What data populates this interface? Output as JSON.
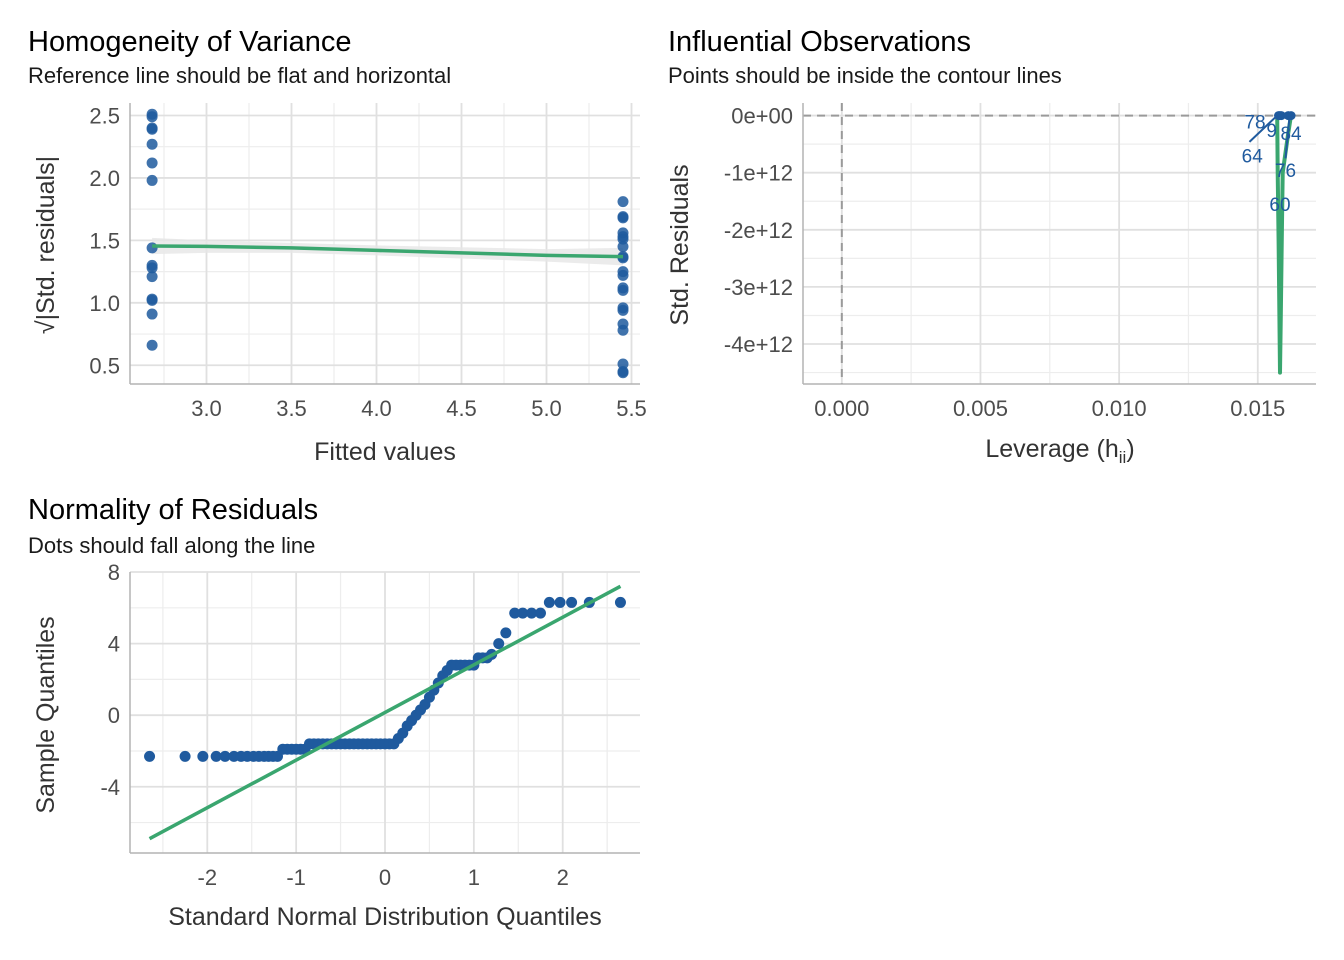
{
  "colors": {
    "points": "#1f5a9e",
    "reference_line": "#3aa66f",
    "band": "#e6e6e6",
    "grid_major": "#e0e0e0",
    "grid_minor": "#ededed",
    "axis": "#b3b3b3",
    "dashed": "#9a9a9a"
  },
  "chart_data": [
    {
      "id": "homogeneity",
      "type": "scatter",
      "title": "Homogeneity of Variance",
      "subtitle": "Reference line should be flat and horizontal",
      "xlabel": "Fitted values",
      "ylabel": "√|Std. residuals|",
      "xlim": [
        2.55,
        5.55
      ],
      "ylim": [
        0.35,
        2.6
      ],
      "x_ticks": [
        3.0,
        3.5,
        4.0,
        4.5,
        5.0,
        5.5
      ],
      "x_tick_labels": [
        "3.0",
        "3.5",
        "4.0",
        "4.5",
        "5.0",
        "5.5"
      ],
      "y_ticks": [
        0.5,
        1.0,
        1.5,
        2.0,
        2.5
      ],
      "y_tick_labels": [
        "0.5",
        "1.0",
        "1.5",
        "2.0",
        "2.5"
      ],
      "points": [
        [
          2.68,
          2.51
        ],
        [
          2.68,
          2.49
        ],
        [
          2.68,
          2.4
        ],
        [
          2.68,
          2.39
        ],
        [
          2.68,
          2.27
        ],
        [
          2.68,
          2.12
        ],
        [
          2.68,
          1.98
        ],
        [
          2.68,
          1.44
        ],
        [
          2.68,
          1.3
        ],
        [
          2.68,
          1.28
        ],
        [
          2.68,
          1.21
        ],
        [
          2.68,
          1.03
        ],
        [
          2.68,
          1.02
        ],
        [
          2.68,
          0.91
        ],
        [
          2.68,
          0.66
        ],
        [
          5.45,
          1.81
        ],
        [
          5.45,
          1.69
        ],
        [
          5.45,
          1.68
        ],
        [
          5.45,
          1.56
        ],
        [
          5.45,
          1.53
        ],
        [
          5.45,
          1.51
        ],
        [
          5.45,
          1.45
        ],
        [
          5.45,
          1.37
        ],
        [
          5.45,
          1.36
        ],
        [
          5.45,
          1.25
        ],
        [
          5.45,
          1.22
        ],
        [
          5.45,
          1.12
        ],
        [
          5.45,
          1.1
        ],
        [
          5.45,
          0.96
        ],
        [
          5.45,
          0.94
        ],
        [
          5.45,
          0.83
        ],
        [
          5.45,
          0.78
        ],
        [
          5.45,
          0.51
        ],
        [
          5.45,
          0.45
        ],
        [
          5.45,
          0.44
        ]
      ],
      "smooth": {
        "x": [
          2.68,
          3.0,
          3.5,
          4.0,
          4.5,
          5.0,
          5.45
        ],
        "y": [
          1.455,
          1.452,
          1.44,
          1.42,
          1.4,
          1.38,
          1.37
        ],
        "band_upper": [
          1.52,
          1.5,
          1.48,
          1.46,
          1.445,
          1.43,
          1.44
        ],
        "band_lower": [
          1.39,
          1.4,
          1.4,
          1.38,
          1.355,
          1.33,
          1.3
        ]
      }
    },
    {
      "id": "influential",
      "type": "scatter",
      "title": "Influential Observations",
      "subtitle": "Points should be inside the contour lines",
      "xlabel": "Leverage (h",
      "xlabel_sub": "ii",
      "xlabel_close": ")",
      "ylabel": "Std. Residuals",
      "xlim": [
        -0.0014,
        0.0171
      ],
      "ylim": [
        -4700000000000.0,
        220000000000.0
      ],
      "x_ticks": [
        0.0,
        0.005,
        0.01,
        0.015
      ],
      "x_tick_labels": [
        "0.000",
        "0.005",
        "0.010",
        "0.015"
      ],
      "y_ticks": [
        0,
        -1000000000000.0,
        -2000000000000.0,
        -3000000000000.0,
        -4000000000000.0
      ],
      "y_tick_labels": [
        "0e+00",
        "-1e+12",
        "-2e+12",
        "-3e+12",
        "-4e+12"
      ],
      "reference_lines": {
        "x": 0.0,
        "y": 0.0
      },
      "points": [
        [
          0.01575,
          0.0
        ],
        [
          0.0158,
          0.0
        ],
        [
          0.01585,
          0.0
        ],
        [
          0.0162,
          0.0
        ],
        [
          0.0161,
          0.0
        ]
      ],
      "labeled_points": [
        {
          "label": "78",
          "x": 0.0149,
          "y": -120000000000.0
        },
        {
          "label": "9",
          "x": 0.0155,
          "y": -270000000000.0
        },
        {
          "label": "84",
          "x": 0.0162,
          "y": -320000000000.0
        },
        {
          "label": "64",
          "x": 0.0148,
          "y": -720000000000.0
        },
        {
          "label": "76",
          "x": 0.016,
          "y": -970000000000.0
        },
        {
          "label": "60",
          "x": 0.0158,
          "y": -1570000000000.0
        }
      ],
      "curve": {
        "x": [
          0.0157,
          0.01572,
          0.01575,
          0.01578,
          0.0158,
          0.01583,
          0.01587,
          0.0159,
          0.0161,
          0.0162
        ],
        "y": [
          0.0,
          -1000000000000.0,
          -2200000000000.0,
          -3500000000000.0,
          -4500000000000.0,
          -3500000000000.0,
          -2000000000000.0,
          -1000000000000.0,
          -300000000000.0,
          0.0
        ]
      }
    },
    {
      "id": "normality",
      "type": "scatter",
      "title": "Normality of Residuals",
      "subtitle": "Dots should fall along the line",
      "xlabel": "Standard Normal Distribution Quantiles",
      "ylabel": "Sample Quantiles",
      "xlim": [
        -2.87,
        2.87
      ],
      "ylim": [
        -7.7,
        8.0
      ],
      "x_ticks": [
        -2,
        -1,
        0,
        1,
        2
      ],
      "x_tick_labels": [
        "-2",
        "-1",
        "0",
        "1",
        "2"
      ],
      "y_ticks": [
        8,
        4,
        0,
        -4
      ],
      "y_tick_labels": [
        "8",
        "4",
        "0",
        "-4"
      ],
      "reference_line": {
        "x": [
          -2.65,
          2.65
        ],
        "y": [
          -6.9,
          7.2
        ]
      },
      "points": [
        [
          -2.65,
          -2.3
        ],
        [
          -2.25,
          -2.3
        ],
        [
          -2.05,
          -2.3
        ],
        [
          -1.9,
          -2.3
        ],
        [
          -1.8,
          -2.3
        ],
        [
          -1.7,
          -2.3
        ],
        [
          -1.62,
          -2.3
        ],
        [
          -1.55,
          -2.3
        ],
        [
          -1.48,
          -2.3
        ],
        [
          -1.42,
          -2.3
        ],
        [
          -1.36,
          -2.3
        ],
        [
          -1.31,
          -2.3
        ],
        [
          -1.26,
          -2.3
        ],
        [
          -1.21,
          -2.3
        ],
        [
          -1.15,
          -1.9
        ],
        [
          -1.1,
          -1.9
        ],
        [
          -1.05,
          -1.9
        ],
        [
          -1.0,
          -1.9
        ],
        [
          -0.95,
          -1.9
        ],
        [
          -0.9,
          -1.9
        ],
        [
          -0.85,
          -1.6
        ],
        [
          -0.8,
          -1.6
        ],
        [
          -0.75,
          -1.6
        ],
        [
          -0.7,
          -1.6
        ],
        [
          -0.65,
          -1.6
        ],
        [
          -0.6,
          -1.6
        ],
        [
          -0.55,
          -1.6
        ],
        [
          -0.5,
          -1.6
        ],
        [
          -0.45,
          -1.6
        ],
        [
          -0.4,
          -1.6
        ],
        [
          -0.35,
          -1.6
        ],
        [
          -0.3,
          -1.6
        ],
        [
          -0.25,
          -1.6
        ],
        [
          -0.2,
          -1.6
        ],
        [
          -0.15,
          -1.6
        ],
        [
          -0.1,
          -1.6
        ],
        [
          -0.05,
          -1.6
        ],
        [
          0.0,
          -1.6
        ],
        [
          0.05,
          -1.6
        ],
        [
          0.1,
          -1.6
        ],
        [
          0.15,
          -1.3
        ],
        [
          0.2,
          -1.0
        ],
        [
          0.25,
          -0.6
        ],
        [
          0.3,
          -0.3
        ],
        [
          0.35,
          0.0
        ],
        [
          0.4,
          0.3
        ],
        [
          0.45,
          0.6
        ],
        [
          0.5,
          1.0
        ],
        [
          0.55,
          1.4
        ],
        [
          0.6,
          1.8
        ],
        [
          0.65,
          2.2
        ],
        [
          0.7,
          2.5
        ],
        [
          0.75,
          2.8
        ],
        [
          0.8,
          2.8
        ],
        [
          0.85,
          2.8
        ],
        [
          0.9,
          2.8
        ],
        [
          0.95,
          2.8
        ],
        [
          1.0,
          2.8
        ],
        [
          1.05,
          3.2
        ],
        [
          1.1,
          3.2
        ],
        [
          1.15,
          3.2
        ],
        [
          1.2,
          3.4
        ],
        [
          1.28,
          4.0
        ],
        [
          1.36,
          4.6
        ],
        [
          1.46,
          5.7
        ],
        [
          1.55,
          5.7
        ],
        [
          1.65,
          5.7
        ],
        [
          1.75,
          5.7
        ],
        [
          1.85,
          6.3
        ],
        [
          1.97,
          6.3
        ],
        [
          2.1,
          6.3
        ],
        [
          2.3,
          6.3
        ],
        [
          2.65,
          6.3
        ]
      ]
    }
  ]
}
